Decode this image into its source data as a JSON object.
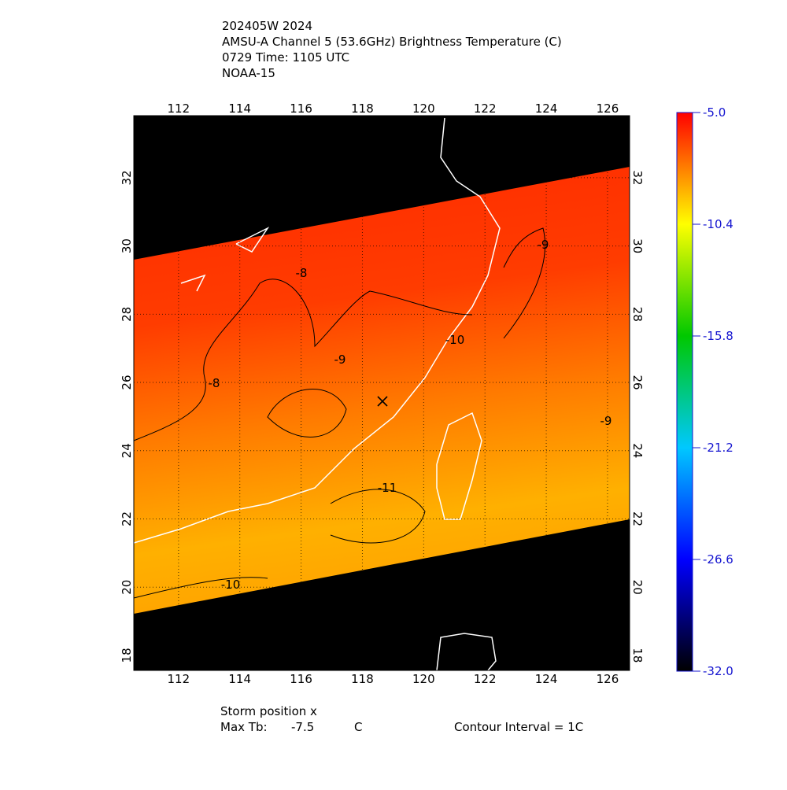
{
  "header": {
    "lines": [
      "202405W 2024",
      "AMSU-A Channel 5 (53.6GHz) Brightness Temperature (C)",
      "0729 Time: 1105 UTC",
      "NOAA-15"
    ]
  },
  "map": {
    "lon_range": [
      110.54,
      126.72
    ],
    "lat_range": [
      17.56,
      33.82
    ],
    "lon_ticks": [
      112,
      114,
      116,
      118,
      120,
      122,
      124,
      126
    ],
    "lat_ticks": [
      18,
      20,
      22,
      24,
      26,
      28,
      30,
      32
    ],
    "contour_labels": [
      "-8",
      "-9",
      "-8",
      "-9",
      "-10",
      "-9",
      "-11",
      "-10"
    ]
  },
  "colorbar": {
    "ticks": [
      {
        "value": -5,
        "label": "-5.0"
      },
      -10.4,
      -15.8,
      -21.2,
      -26.6,
      {
        "value": -32,
        "label": "-32.0"
      }
    ]
  },
  "footer": {
    "storm_position": "Storm position x",
    "max_tb_label": "Max Tb:",
    "max_tb": -7.5,
    "max_tb_unit": "C",
    "contour_interval": "Contour Interval = 1C"
  }
}
